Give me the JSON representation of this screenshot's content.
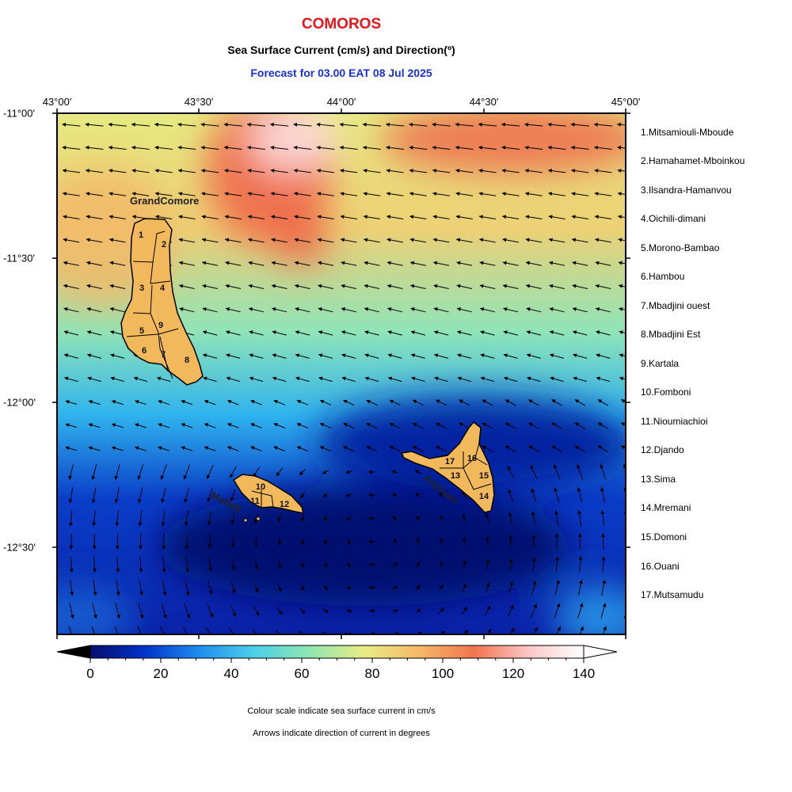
{
  "title": "COMOROS",
  "subtitle": "Sea Surface Current (cm/s) and Direction(º)",
  "forecast": "Forecast for  03.00 EAT 08 Jul 2025",
  "top_axis_labels": [
    "43°00'",
    "43°30'",
    "44°00'",
    "44°30'",
    "45°00'"
  ],
  "left_axis_labels": [
    "-11°00'",
    "-11°30'",
    "-12°00'",
    "-12°30'"
  ],
  "island_labels": {
    "grand_comore": "GrandComore",
    "moheli": "Moheli",
    "anjouan": "Anjouan"
  },
  "region_numbers": [
    "1",
    "2",
    "3",
    "4",
    "5",
    "6",
    "7",
    "8",
    "9",
    "10",
    "11",
    "12",
    "13",
    "14",
    "15",
    "16",
    "17"
  ],
  "legend": [
    "1.Mitsamiouli-Mboude",
    "2.Hamahamet-Mboinkou",
    "3.Ilsandra-Hamanvou",
    "4.Oichili-dimani",
    "5.Morono-Bambao",
    "6.Hambou",
    "7.Mbadjini ouest",
    "8.Mbadjini Est",
    "9.Kartala",
    "10.Fomboni",
    "11.Nioumiachioi",
    "12.Djando",
    "13.Sima",
    "14.Mremani",
    "15.Domoni",
    "16.Ouani",
    "17.Mutsamudu"
  ],
  "colorbar": {
    "ticks": [
      "0",
      "20",
      "40",
      "60",
      "80",
      "100",
      "120",
      "140"
    ],
    "range": [
      0,
      140
    ],
    "colors": [
      "#070d70",
      "#0033cc",
      "#1f8ff0",
      "#4cd0e8",
      "#8ee6b0",
      "#e9ec85",
      "#f6b869",
      "#f2744e",
      "#fac8c8",
      "#ffffff"
    ]
  },
  "land_color": "#f1b85c",
  "notes": [
    "Colour scale indicate sea surface current in cm/s",
    "Arrows indicate direction of current in degrees"
  ]
}
